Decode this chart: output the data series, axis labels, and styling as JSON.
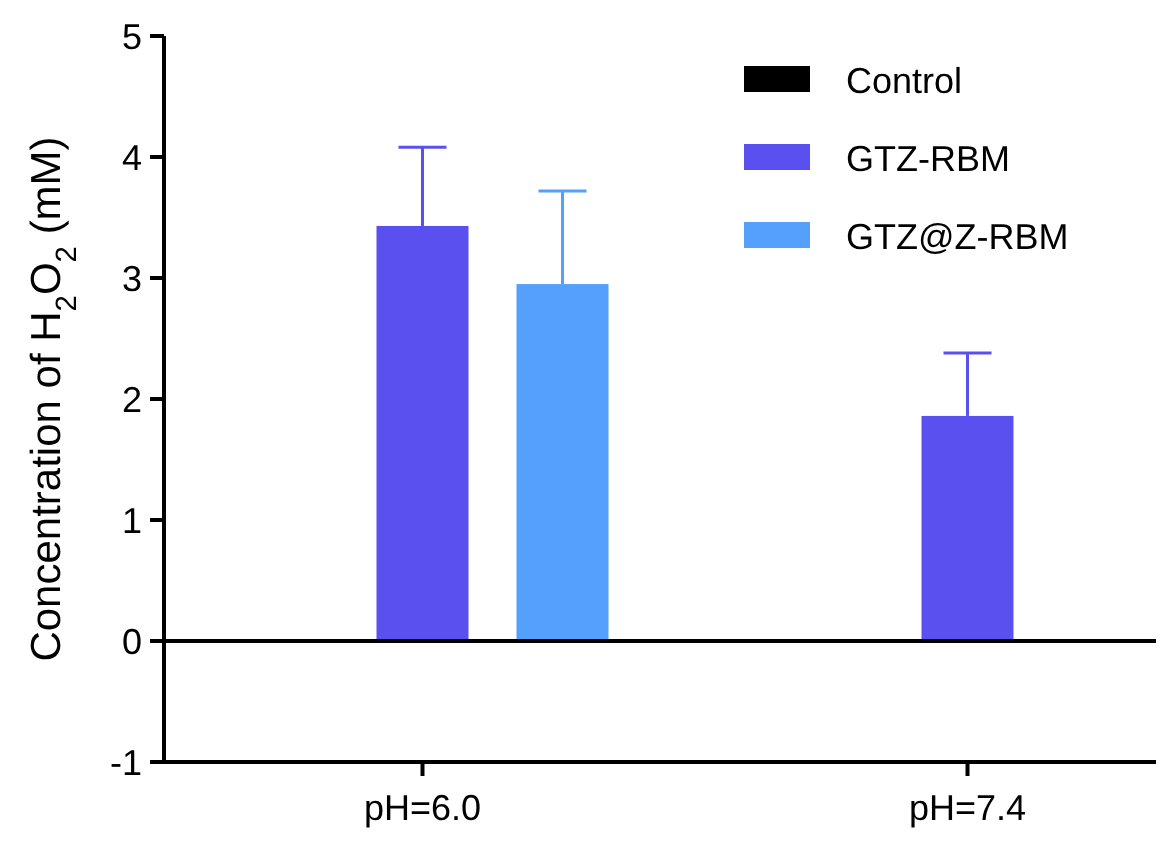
{
  "chart_data": {
    "type": "bar",
    "ylabel": "Concentration of H$_{2}$O$_{2}$ (mM)",
    "categories": [
      "pH=6.0",
      "pH=7.4"
    ],
    "series": [
      {
        "name": "Control",
        "color": "#000000",
        "values": [
          null,
          null
        ]
      },
      {
        "name": "GTZ-RBM",
        "color": "#5a50f0",
        "values": [
          3.43,
          1.86
        ],
        "errors": [
          [
            3.43,
            4.08
          ],
          [
            1.86,
            2.38
          ]
        ]
      },
      {
        "name": "GTZ@Z-RBM",
        "color": "#55a0fa",
        "values": [
          2.95,
          null
        ],
        "errors": [
          [
            2.95,
            3.72
          ],
          null
        ]
      }
    ],
    "ylim": [
      -1,
      5
    ],
    "yticks": [
      -1,
      0,
      1,
      2,
      3,
      4,
      5
    ],
    "legend": "top right"
  }
}
